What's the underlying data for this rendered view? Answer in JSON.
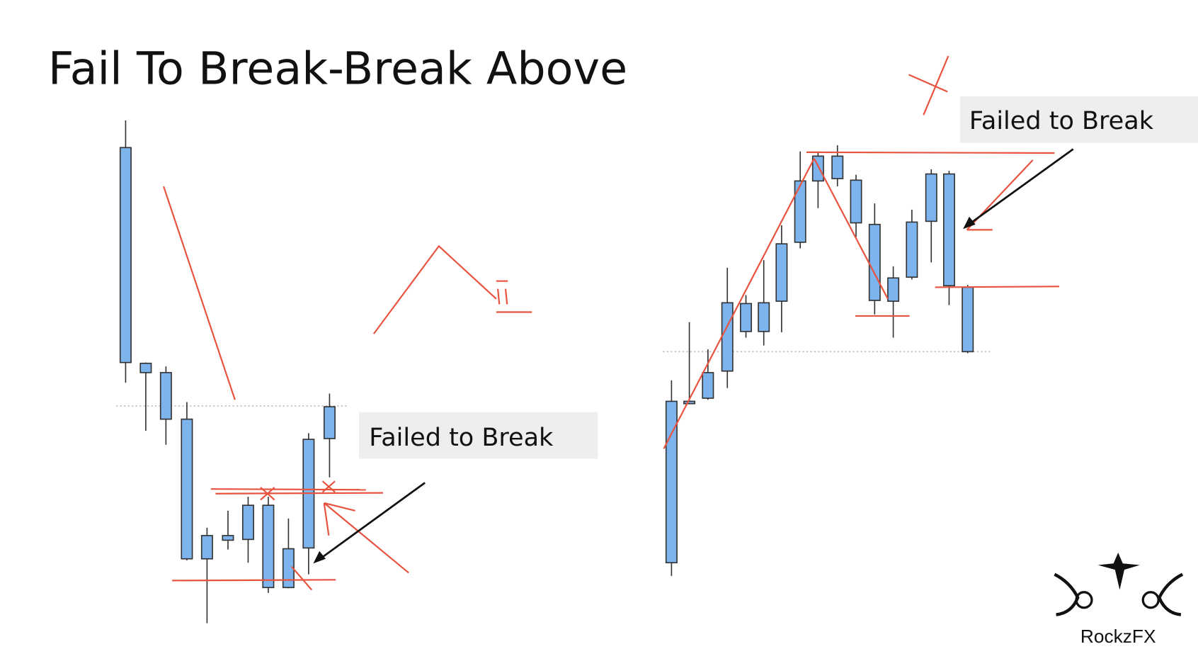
{
  "header": {
    "title": "Fail To Break-Break Above"
  },
  "left_panel": {
    "label": "Failed to Break"
  },
  "right_panel": {
    "label": "Failed to Break"
  },
  "logo": {
    "text": "RockzFX"
  }
}
